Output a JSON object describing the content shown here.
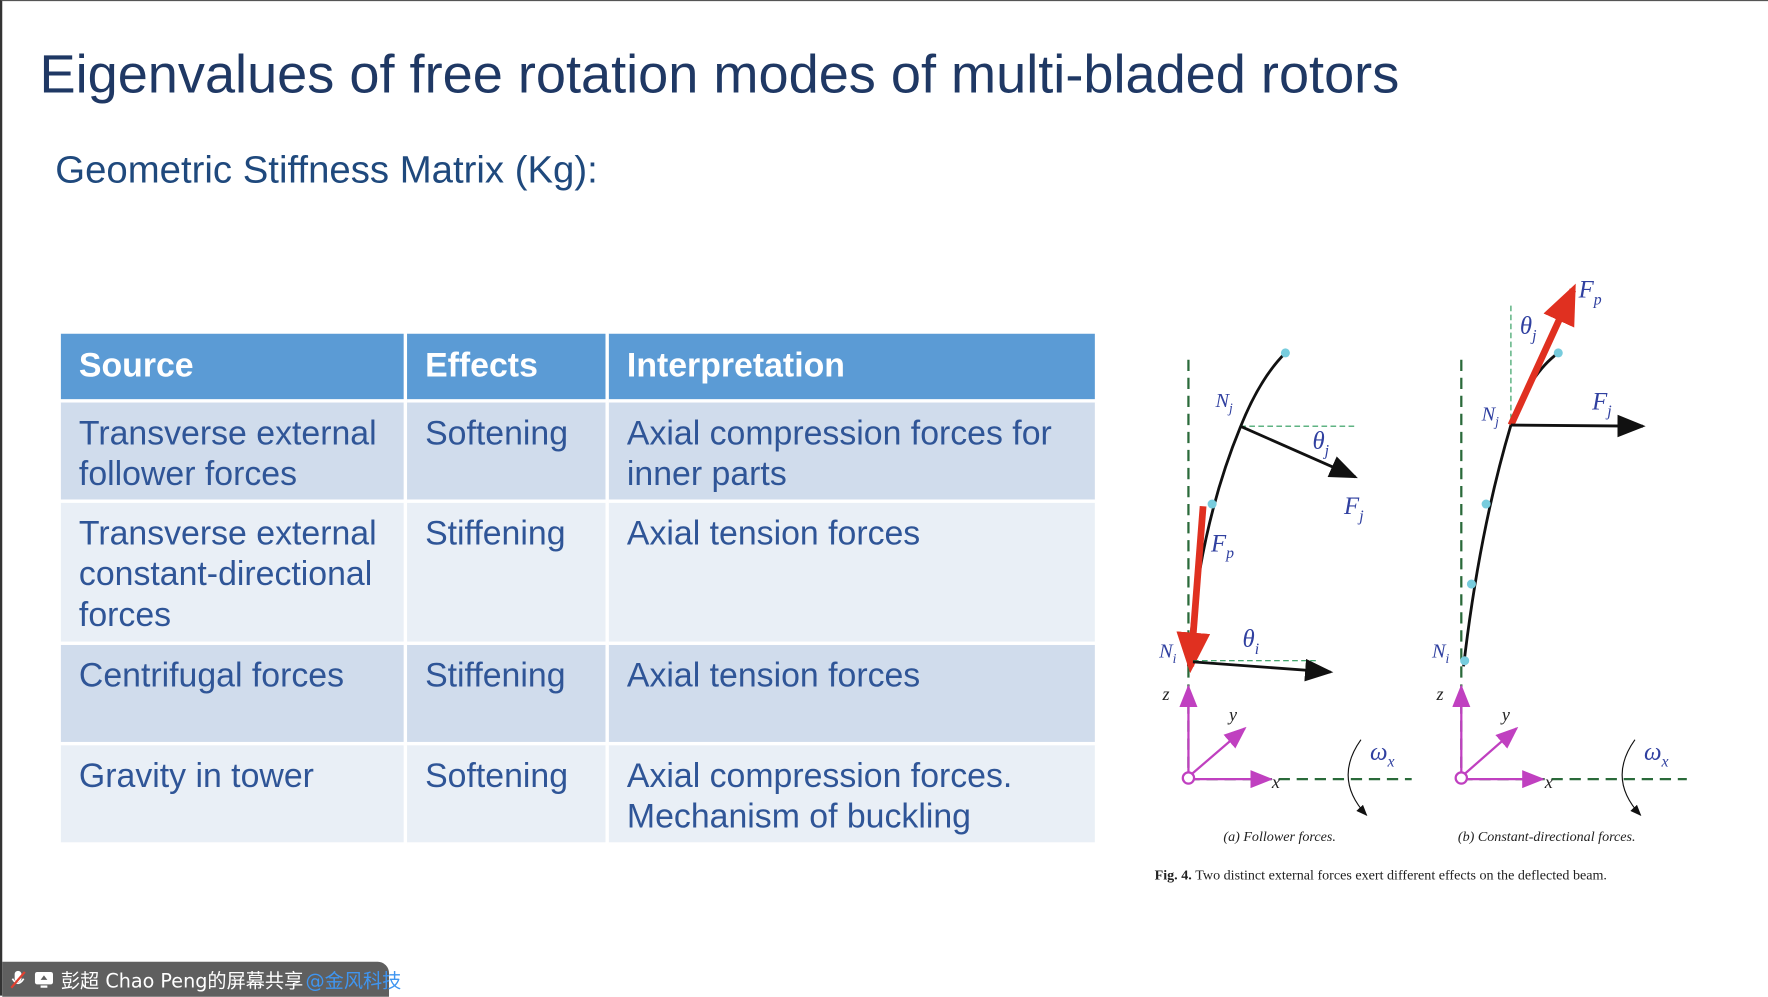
{
  "slide": {
    "title": "Eigenvalues of free rotation modes of multi-bladed rotors",
    "subtitle": "Geometric Stiffness Matrix (Kg):"
  },
  "table": {
    "headers": [
      "Source",
      "Effects",
      "Interpretation"
    ],
    "rows": [
      [
        "Transverse external follower forces",
        "Softening",
        "Axial compression forces for inner parts"
      ],
      [
        "Transverse external constant-directional forces",
        "Stiffening",
        "Axial tension forces"
      ],
      [
        "Centrifugal forces",
        "Stiffening",
        "Axial tension forces"
      ],
      [
        "Gravity in tower",
        "Softening",
        "Axial compression forces. Mechanism of buckling"
      ]
    ],
    "header_color": "#5b9bd5"
  },
  "figure": {
    "caption_a": "(a) Follower forces.",
    "caption_b": "(b) Constant-directional forces.",
    "caption_label": "Fig. 4.",
    "caption_text": "Two distinct external forces exert different effects on the deflected beam.",
    "labels": {
      "Nj": "N",
      "Ni": "N",
      "sub_j": "j",
      "sub_i": "i",
      "sub_p": "p",
      "theta": "θ",
      "F": "F",
      "z": "z",
      "y": "y",
      "x": "x",
      "omega": "ω",
      "sub_x": "x"
    }
  },
  "share_bar": {
    "text": "彭超 Chao Peng的屏幕共享",
    "org": "@金风科技",
    "icons": [
      "mic-muted-icon",
      "screen-share-icon"
    ]
  }
}
